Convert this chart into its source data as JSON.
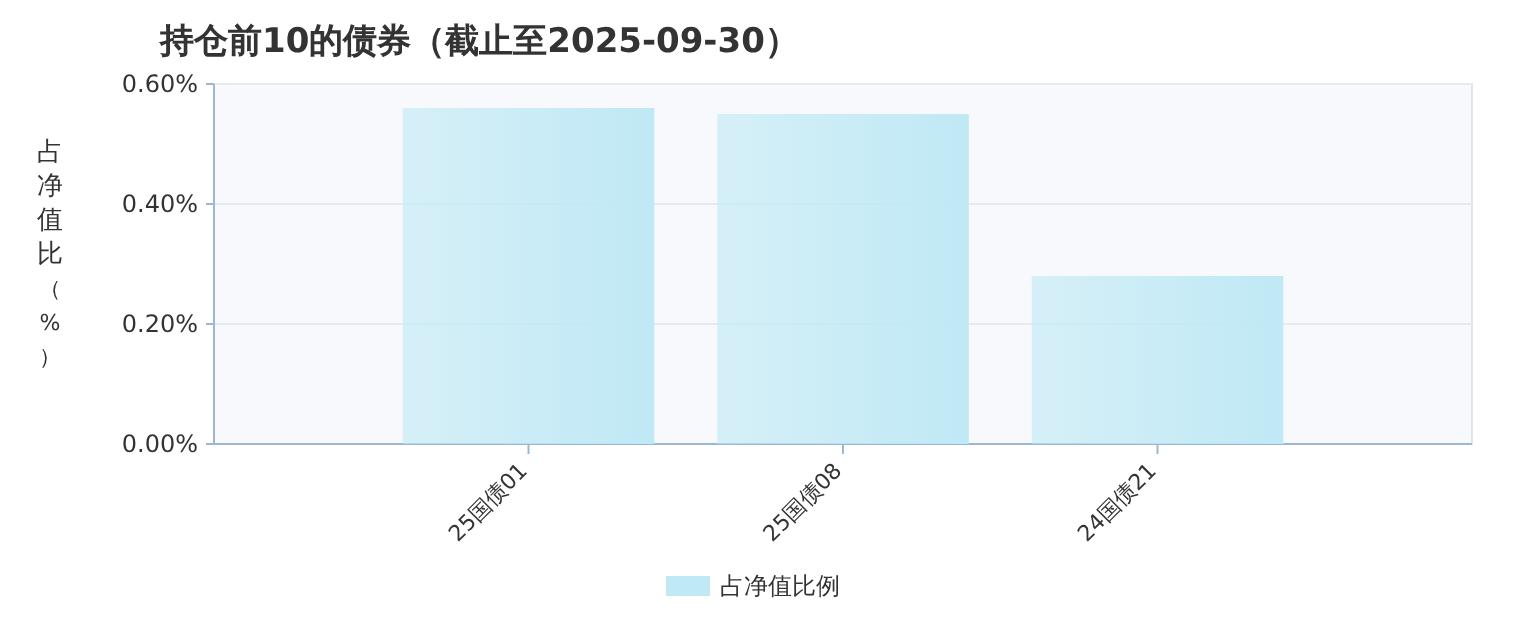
{
  "chart_data": {
    "type": "bar",
    "title": "持仓前10的债券（截止至2025-09-30）",
    "ylabel": "占净值比（%）",
    "categories": [
      "25国债01",
      "25国债08",
      "24国债21"
    ],
    "series": [
      {
        "name": "占净值比例",
        "color": "#bfe9f5",
        "values": [
          0.56,
          0.55,
          0.28
        ]
      }
    ],
    "ylim": [
      0,
      0.6
    ],
    "yticks": [
      {
        "value": 0,
        "label": "0.00%"
      },
      {
        "value": 0.2,
        "label": "0.20%"
      },
      {
        "value": 0.4,
        "label": "0.40%"
      },
      {
        "value": 0.6,
        "label": "0.60%"
      }
    ],
    "grid": "y",
    "legend": "bottom"
  }
}
